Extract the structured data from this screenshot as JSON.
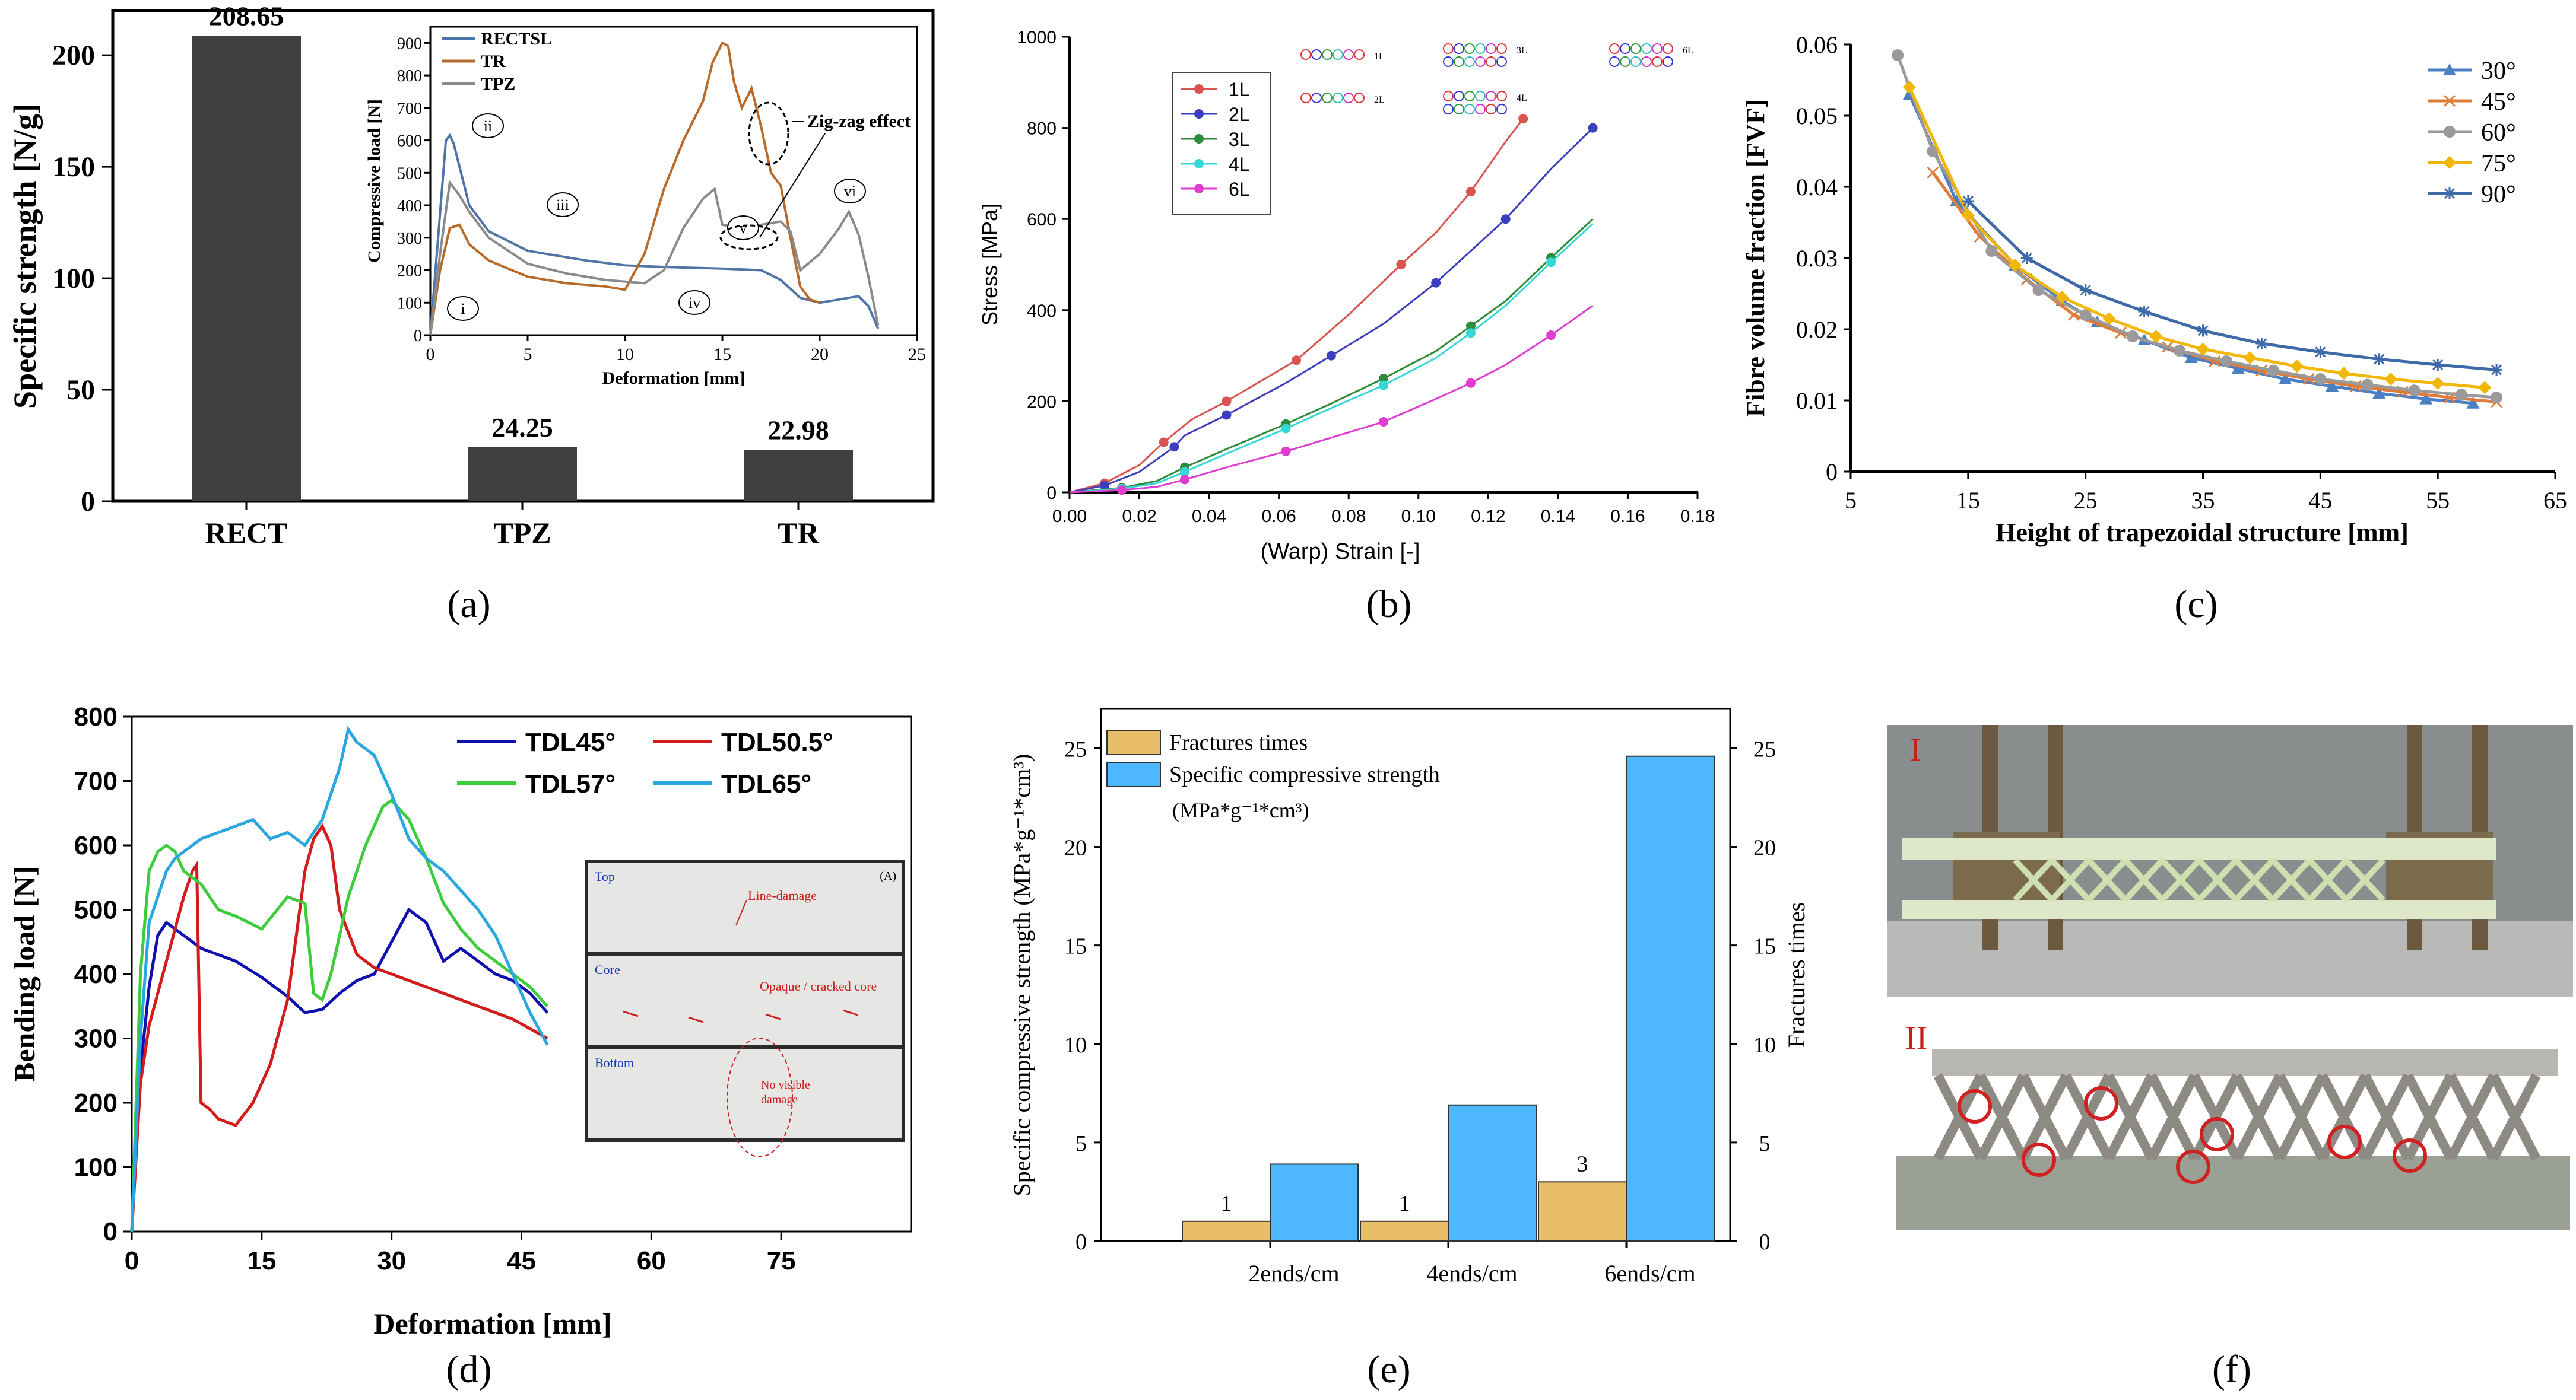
{
  "panel_labels": [
    "(a)",
    "(b)",
    "(c)",
    "(d)",
    "(e)",
    "(f)"
  ],
  "chart_data": [
    {
      "id": "a",
      "type": "bar",
      "categories": [
        "RECT",
        "TPZ",
        "TR"
      ],
      "values": [
        208.65,
        24.25,
        22.98
      ],
      "value_labels": [
        "208.65",
        "24.25",
        "22.98"
      ],
      "ylabel": "Specific strength [N/g]",
      "ylim": [
        0,
        220
      ],
      "yticks": [
        "0",
        "50",
        "100",
        "150",
        "200"
      ],
      "bar_color": "#404040",
      "inset": {
        "type": "line",
        "xlabel": "Deformation [mm]",
        "ylabel": "Compressive load [N]",
        "xlim": [
          0,
          25
        ],
        "ylim": [
          0,
          950
        ],
        "xticks": [
          "0",
          "5",
          "10",
          "15",
          "20",
          "25"
        ],
        "yticks": [
          "0",
          "100",
          "200",
          "300",
          "400",
          "500",
          "600",
          "700",
          "800",
          "900"
        ],
        "legend_position": "top-left",
        "annotation": "Zig-zag effect",
        "markers": [
          "i",
          "ii",
          "iii",
          "iv",
          "v",
          "vi"
        ],
        "series": [
          {
            "name": "RECTSL",
            "color": "#4f74a8",
            "x": [
              0,
              0.4,
              0.8,
              1.0,
              1.2,
              2,
              3,
              5,
              8,
              10,
              12,
              15,
              17,
              18,
              19,
              20,
              21,
              22,
              22.5,
              23
            ],
            "y": [
              0,
              300,
              600,
              615,
              590,
              400,
              320,
              260,
              230,
              215,
              210,
              205,
              200,
              170,
              115,
              100,
              110,
              120,
              90,
              20
            ]
          },
          {
            "name": "TR",
            "color": "#b86a2a",
            "x": [
              0,
              0.5,
              1,
              1.5,
              2,
              3,
              5,
              7,
              9,
              10,
              11,
              12,
              13,
              14,
              14.5,
              15,
              15.3,
              15.6,
              16,
              16.5,
              17,
              17.5,
              18,
              18.5,
              19,
              19.5,
              20
            ],
            "y": [
              0,
              200,
              330,
              340,
              280,
              230,
              180,
              160,
              150,
              140,
              250,
              450,
              600,
              720,
              840,
              900,
              890,
              780,
              700,
              760,
              640,
              500,
              460,
              300,
              150,
              110,
              100
            ]
          },
          {
            "name": "TPZ",
            "color": "#8a8a8a",
            "x": [
              0,
              0.5,
              1,
              1.5,
              2,
              3,
              5,
              7,
              9,
              11,
              12,
              13,
              14,
              14.6,
              15,
              16,
              17,
              18,
              18.5,
              19,
              20,
              21,
              21.5,
              22,
              22.5,
              23
            ],
            "y": [
              0,
              250,
              470,
              430,
              380,
              300,
              220,
              190,
              170,
              160,
              200,
              330,
              420,
              450,
              340,
              330,
              340,
              350,
              320,
              200,
              250,
              330,
              380,
              310,
              180,
              30
            ]
          }
        ]
      }
    },
    {
      "id": "b",
      "type": "line",
      "xlabel": "(Warp) Strain [-]",
      "ylabel": "Stress [MPa]",
      "xlim": [
        0,
        0.18
      ],
      "ylim": [
        0,
        1000
      ],
      "xticks": [
        "0.00",
        "0.02",
        "0.04",
        "0.06",
        "0.08",
        "0.10",
        "0.12",
        "0.14",
        "0.16",
        "0.18"
      ],
      "yticks": [
        "0",
        "200",
        "400",
        "600",
        "800",
        "1000"
      ],
      "legend_position": "top-left",
      "inset_labels": [
        "1L",
        "2L",
        "3L",
        "4L",
        "6L"
      ],
      "series": [
        {
          "name": "1L",
          "color": "#d9534f",
          "x": [
            0,
            0.01,
            0.02,
            0.027,
            0.035,
            0.045,
            0.055,
            0.065,
            0.08,
            0.095,
            0.105,
            0.115,
            0.125,
            0.13
          ],
          "y": [
            0,
            20,
            60,
            110,
            160,
            200,
            245,
            290,
            390,
            500,
            570,
            660,
            770,
            820
          ]
        },
        {
          "name": "2L",
          "color": "#3b3fbf",
          "x": [
            0,
            0.01,
            0.02,
            0.03,
            0.033,
            0.045,
            0.062,
            0.075,
            0.09,
            0.105,
            0.115,
            0.125,
            0.138,
            0.15
          ],
          "y": [
            0,
            15,
            45,
            100,
            125,
            170,
            240,
            300,
            370,
            460,
            530,
            600,
            710,
            800
          ]
        },
        {
          "name": "3L",
          "color": "#2e8b3a",
          "x": [
            0,
            0.015,
            0.025,
            0.033,
            0.045,
            0.062,
            0.075,
            0.09,
            0.105,
            0.115,
            0.125,
            0.138,
            0.15
          ],
          "y": [
            0,
            10,
            25,
            55,
            95,
            150,
            195,
            250,
            310,
            365,
            420,
            515,
            600
          ]
        },
        {
          "name": "4L",
          "color": "#38d7d7",
          "x": [
            0,
            0.015,
            0.025,
            0.033,
            0.045,
            0.062,
            0.075,
            0.09,
            0.105,
            0.115,
            0.125,
            0.138,
            0.15
          ],
          "y": [
            0,
            8,
            20,
            45,
            85,
            140,
            185,
            235,
            295,
            350,
            410,
            505,
            590
          ]
        },
        {
          "name": "6L",
          "color": "#e03ccf",
          "x": [
            0,
            0.015,
            0.025,
            0.033,
            0.045,
            0.062,
            0.075,
            0.09,
            0.105,
            0.115,
            0.125,
            0.138,
            0.15
          ],
          "y": [
            0,
            5,
            12,
            28,
            55,
            90,
            120,
            155,
            205,
            240,
            280,
            345,
            410
          ]
        }
      ]
    },
    {
      "id": "c",
      "type": "line",
      "xlabel": "Height of trapezoidal structure [mm]",
      "ylabel": "Fibre volume fraction [FVF]",
      "xlim": [
        5,
        65
      ],
      "ylim": [
        0,
        0.06
      ],
      "xticks": [
        "5",
        "15",
        "25",
        "35",
        "45",
        "55",
        "65"
      ],
      "yticks": [
        "0",
        "0.01",
        "0.02",
        "0.03",
        "0.04",
        "0.05",
        "0.06"
      ],
      "legend_position": "top-right",
      "series": [
        {
          "name": "30°",
          "color": "#4a7fc1",
          "marker": "triangle",
          "x": [
            10,
            14,
            19,
            23,
            26,
            30,
            34,
            38,
            42,
            46,
            50,
            54,
            58
          ],
          "y": [
            0.053,
            0.038,
            0.029,
            0.024,
            0.021,
            0.0185,
            0.016,
            0.0145,
            0.013,
            0.012,
            0.011,
            0.0102,
            0.0096
          ]
        },
        {
          "name": "45°",
          "color": "#e07b39",
          "marker": "x",
          "x": [
            12,
            16,
            20,
            24,
            28,
            32,
            36,
            40,
            44,
            48,
            52,
            56,
            60
          ],
          "y": [
            0.042,
            0.033,
            0.027,
            0.022,
            0.0195,
            0.0175,
            0.0155,
            0.0142,
            0.013,
            0.012,
            0.0112,
            0.0104,
            0.0098
          ]
        },
        {
          "name": "60°",
          "color": "#9a9a9a",
          "marker": "circle",
          "x": [
            9,
            12,
            17,
            21,
            25,
            29,
            33,
            37,
            41,
            45,
            49,
            53,
            57,
            60
          ],
          "y": [
            0.0585,
            0.045,
            0.031,
            0.0255,
            0.022,
            0.019,
            0.017,
            0.0155,
            0.0142,
            0.013,
            0.0122,
            0.0114,
            0.0108,
            0.0104
          ]
        },
        {
          "name": "75°",
          "color": "#f2b705",
          "marker": "diamond",
          "x": [
            10,
            15,
            19,
            23,
            27,
            31,
            35,
            39,
            43,
            47,
            51,
            55,
            59
          ],
          "y": [
            0.054,
            0.036,
            0.029,
            0.0245,
            0.0215,
            0.019,
            0.0172,
            0.016,
            0.0148,
            0.0138,
            0.013,
            0.0124,
            0.0118
          ]
        },
        {
          "name": "90°",
          "color": "#3f6aa8",
          "marker": "asterisk",
          "x": [
            15,
            20,
            25,
            30,
            35,
            40,
            45,
            50,
            55,
            60
          ],
          "y": [
            0.038,
            0.03,
            0.0255,
            0.0225,
            0.0198,
            0.018,
            0.0168,
            0.0158,
            0.015,
            0.0143
          ]
        }
      ]
    },
    {
      "id": "d",
      "type": "line",
      "xlabel": "Deformation [mm]",
      "ylabel": "Bending load [N]",
      "xlim": [
        0,
        90
      ],
      "ylim": [
        0,
        800
      ],
      "xticks": [
        "0",
        "15",
        "30",
        "45",
        "60",
        "75"
      ],
      "yticks": [
        "0",
        "100",
        "200",
        "300",
        "400",
        "500",
        "600",
        "700",
        "800"
      ],
      "legend_position": "top-right",
      "photo_labels": [
        "Top",
        "Core",
        "Bottom",
        "(A)",
        "Line-damage",
        "Opaque / cracked core",
        "No visible damage"
      ],
      "series": [
        {
          "name": "TDL45°",
          "color": "#1010b0",
          "x": [
            0,
            1,
            2,
            3,
            4,
            5,
            6,
            8,
            10,
            12,
            15,
            18,
            20,
            22,
            24,
            26,
            28,
            30,
            32,
            34,
            36,
            38,
            40,
            42,
            44,
            46,
            48
          ],
          "y": [
            0,
            250,
            380,
            460,
            480,
            470,
            460,
            440,
            430,
            420,
            395,
            365,
            340,
            345,
            370,
            390,
            400,
            450,
            500,
            480,
            420,
            440,
            420,
            400,
            390,
            370,
            340
          ]
        },
        {
          "name": "TDL50.5°",
          "color": "#d41b1b",
          "x": [
            0,
            1,
            2,
            3,
            4,
            5,
            6,
            7,
            7.5,
            8,
            9,
            10,
            12,
            14,
            16,
            18,
            20,
            21,
            22,
            23,
            24,
            26,
            28,
            30,
            32,
            34,
            36,
            38,
            40,
            42,
            44,
            46,
            48
          ],
          "y": [
            0,
            230,
            320,
            370,
            420,
            470,
            520,
            560,
            570,
            200,
            190,
            175,
            165,
            200,
            260,
            360,
            560,
            610,
            630,
            600,
            500,
            430,
            410,
            400,
            390,
            380,
            370,
            360,
            350,
            340,
            330,
            315,
            300
          ]
        },
        {
          "name": "TDL57°",
          "color": "#3ccc3c",
          "x": [
            0,
            1,
            2,
            3,
            4,
            5,
            6,
            8,
            10,
            12,
            15,
            18,
            20,
            21,
            22,
            23,
            25,
            27,
            29,
            30,
            32,
            34,
            36,
            38,
            40,
            42,
            44,
            46,
            48
          ],
          "y": [
            0,
            400,
            560,
            590,
            600,
            590,
            560,
            540,
            500,
            490,
            470,
            520,
            510,
            370,
            360,
            400,
            520,
            600,
            660,
            670,
            640,
            580,
            510,
            470,
            440,
            420,
            400,
            380,
            350
          ]
        },
        {
          "name": "TDL65°",
          "color": "#2aa7e0",
          "x": [
            0,
            1,
            2,
            3,
            4,
            5,
            6,
            8,
            10,
            12,
            14,
            16,
            18,
            20,
            22,
            24,
            25,
            26,
            28,
            30,
            32,
            34,
            36,
            38,
            40,
            42,
            44,
            46,
            48
          ],
          "y": [
            0,
            300,
            480,
            520,
            560,
            580,
            590,
            610,
            620,
            630,
            640,
            610,
            620,
            600,
            640,
            720,
            780,
            760,
            740,
            680,
            610,
            580,
            560,
            530,
            500,
            460,
            400,
            340,
            290
          ]
        }
      ]
    },
    {
      "id": "e",
      "type": "bar",
      "categories": [
        "2ends/cm",
        "4ends/cm",
        "6ends/cm"
      ],
      "ylabel": "Specific compressive strength (MPa*g⁻¹*cm³)",
      "y2label": "Fractures times",
      "ylim": [
        0,
        27
      ],
      "yticks": [
        "0",
        "5",
        "10",
        "15",
        "20",
        "25"
      ],
      "y2ticks": [
        "0",
        "5",
        "10",
        "15",
        "20",
        "25"
      ],
      "legend_position": "top-left",
      "series": [
        {
          "name": "Fractures times",
          "color": "#e8be6a",
          "values": [
            1,
            1,
            3
          ],
          "value_labels": [
            "1",
            "1",
            "3"
          ]
        },
        {
          "name": "Specific compressive strength",
          "name_unit": "(MPa*g⁻¹*cm³)",
          "color": "#4db8ff",
          "values": [
            3.9,
            6.9,
            24.6
          ]
        }
      ]
    }
  ],
  "photos": {
    "f1_label": "I",
    "f2_label": "II"
  }
}
